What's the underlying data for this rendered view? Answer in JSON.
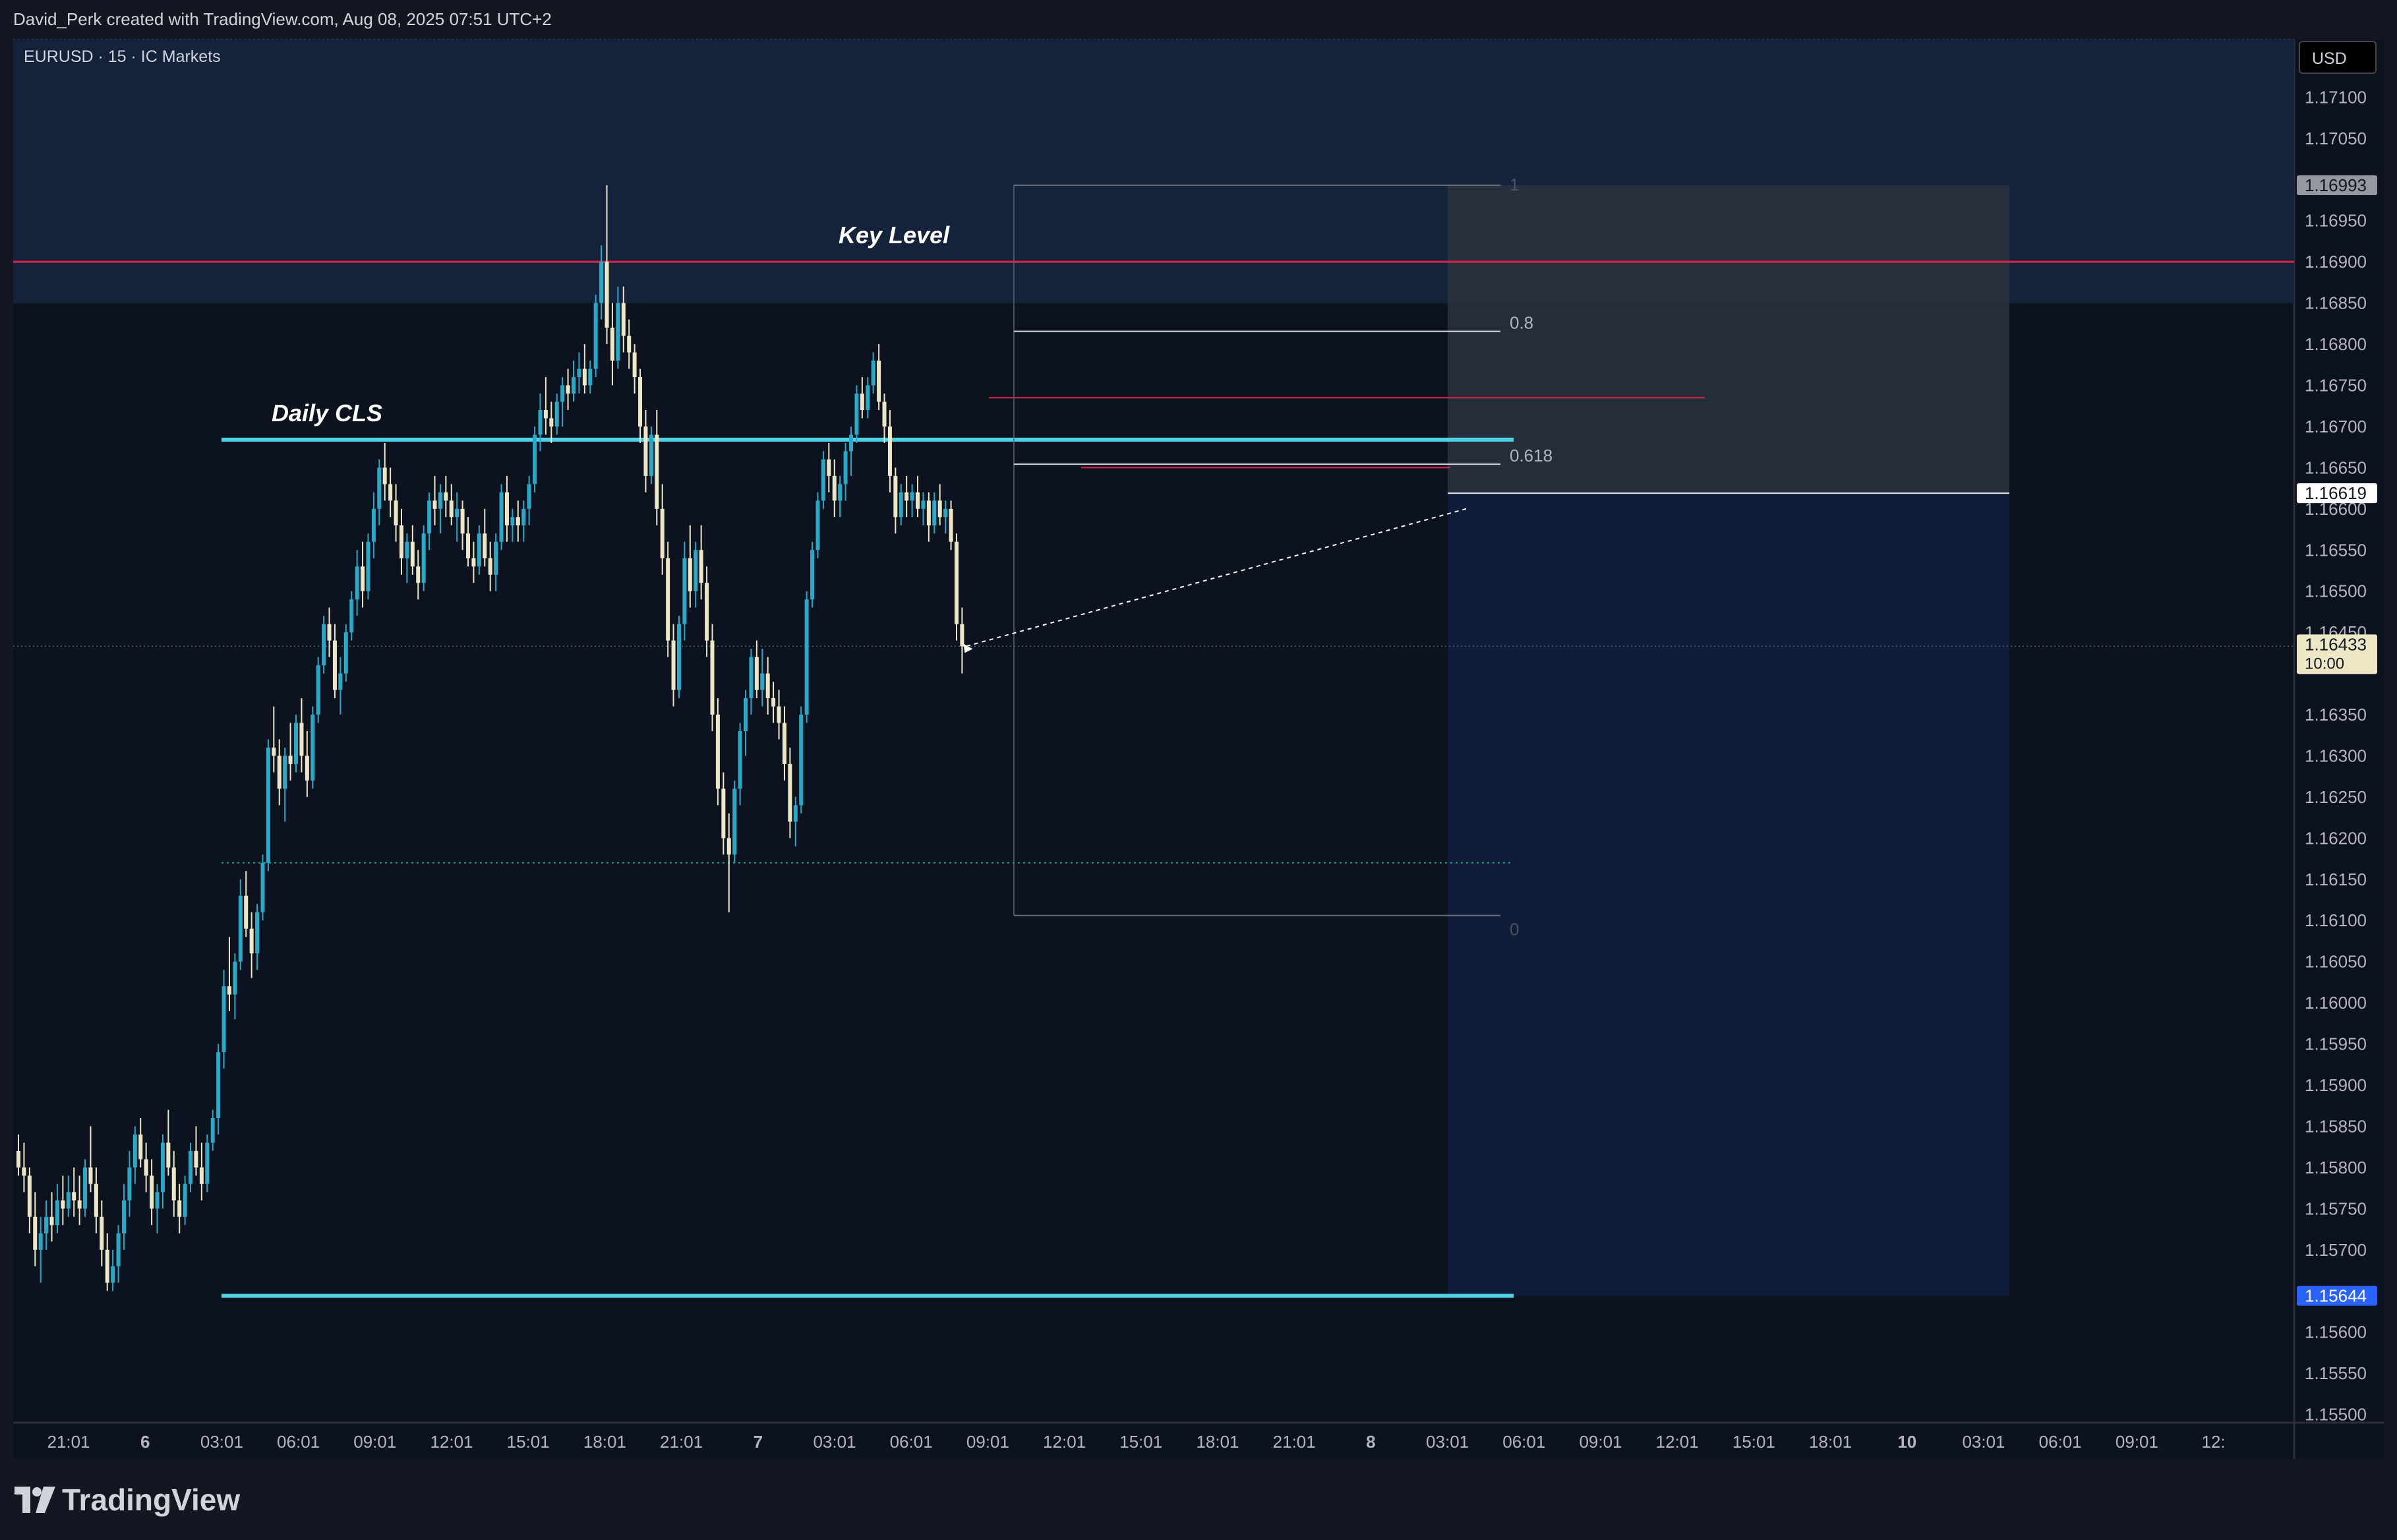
{
  "header": {
    "author_line": "David_Perk created with TradingView.com, Aug 08, 2025 07:51 UTC+2",
    "symbol_line": "EURUSD · 15 · IC Markets",
    "currency": "USD"
  },
  "footer": {
    "brand": "TradingView"
  },
  "colors": {
    "background": "#0c131f",
    "bull_candle": "#29a9c8",
    "bear_candle": "#ede7c6",
    "key_level_line": "#e0254a",
    "daily_cls_line": "#4fd3e8",
    "zone_top": "#15233d",
    "zone_right": "#0f1f3b",
    "zone_grey": "#2b3240",
    "last_price_tag": "#ede7c6",
    "target_tag": "#2962ff"
  },
  "chart_data": {
    "type": "candlestick",
    "symbol": "EURUSD",
    "interval": "15",
    "broker": "IC Markets",
    "y_axis": {
      "ticks": [
        "1.17100",
        "1.17050",
        "1.16950",
        "1.16900",
        "1.16850",
        "1.16800",
        "1.16750",
        "1.16700",
        "1.16650",
        "1.16600",
        "1.16550",
        "1.16500",
        "1.16450",
        "1.16350",
        "1.16300",
        "1.16250",
        "1.16200",
        "1.16150",
        "1.16100",
        "1.16050",
        "1.16000",
        "1.15950",
        "1.15900",
        "1.15850",
        "1.15800",
        "1.15750",
        "1.15700",
        "1.15600",
        "1.15550",
        "1.15500"
      ],
      "range": [
        1.1549,
        1.1717
      ]
    },
    "x_axis": {
      "ticks": [
        {
          "label": "21:01",
          "bold": false
        },
        {
          "label": "6",
          "bold": true
        },
        {
          "label": "03:01",
          "bold": false
        },
        {
          "label": "06:01",
          "bold": false
        },
        {
          "label": "09:01",
          "bold": false
        },
        {
          "label": "12:01",
          "bold": false
        },
        {
          "label": "15:01",
          "bold": false
        },
        {
          "label": "18:01",
          "bold": false
        },
        {
          "label": "21:01",
          "bold": false
        },
        {
          "label": "7",
          "bold": true
        },
        {
          "label": "03:01",
          "bold": false
        },
        {
          "label": "06:01",
          "bold": false
        },
        {
          "label": "09:01",
          "bold": false
        },
        {
          "label": "12:01",
          "bold": false
        },
        {
          "label": "15:01",
          "bold": false
        },
        {
          "label": "18:01",
          "bold": false
        },
        {
          "label": "21:01",
          "bold": false
        },
        {
          "label": "8",
          "bold": true
        },
        {
          "label": "03:01",
          "bold": false
        },
        {
          "label": "06:01",
          "bold": false
        },
        {
          "label": "09:01",
          "bold": false
        },
        {
          "label": "12:01",
          "bold": false
        },
        {
          "label": "15:01",
          "bold": false
        },
        {
          "label": "18:01",
          "bold": false
        },
        {
          "label": "10",
          "bold": true
        },
        {
          "label": "03:01",
          "bold": false
        },
        {
          "label": "06:01",
          "bold": false
        },
        {
          "label": "09:01",
          "bold": false
        },
        {
          "label": "12:",
          "bold": false
        }
      ]
    },
    "price_tags": [
      {
        "value": 1.16993,
        "label": "1.16993",
        "style": "grey"
      },
      {
        "value": 1.16619,
        "label": "1.16619",
        "style": "white"
      },
      {
        "value": 1.16433,
        "label": "1.16433",
        "sub": "10:00",
        "style": "last"
      },
      {
        "value": 1.15644,
        "label": "1.15644",
        "style": "blue"
      }
    ],
    "annotations": [
      {
        "type": "label",
        "text": "Key Level"
      },
      {
        "type": "label",
        "text": "Daily CLS"
      },
      {
        "type": "hline",
        "name": "key-level",
        "price": 1.169
      },
      {
        "type": "hline",
        "name": "daily-cls-upper",
        "price": 1.16684
      },
      {
        "type": "hline",
        "name": "daily-cls-lower",
        "price": 1.15644
      }
    ],
    "fibonacci": {
      "high": 1.16993,
      "low": 1.16106,
      "levels": [
        {
          "ratio": 1,
          "label": "1"
        },
        {
          "ratio": 0.8,
          "label": "0.8"
        },
        {
          "ratio": 0.618,
          "label": "0.618"
        },
        {
          "ratio": 0,
          "label": "0"
        }
      ]
    },
    "position": {
      "entry": 1.16619,
      "stop": 1.16993,
      "target": 1.15644
    },
    "last_price": 1.16433,
    "candles": [
      [
        1.1582,
        1.1584,
        1.1579,
        1.158
      ],
      [
        1.158,
        1.1583,
        1.1577,
        1.1579
      ],
      [
        1.1579,
        1.158,
        1.1572,
        1.1574
      ],
      [
        1.1574,
        1.1577,
        1.1568,
        1.157
      ],
      [
        1.157,
        1.1574,
        1.1566,
        1.1572
      ],
      [
        1.1572,
        1.1576,
        1.157,
        1.1574
      ],
      [
        1.1574,
        1.1577,
        1.1571,
        1.1573
      ],
      [
        1.1573,
        1.1578,
        1.1572,
        1.1576
      ],
      [
        1.1576,
        1.1579,
        1.1573,
        1.1575
      ],
      [
        1.1575,
        1.1579,
        1.1574,
        1.1577
      ],
      [
        1.1577,
        1.158,
        1.1574,
        1.1576
      ],
      [
        1.1576,
        1.1579,
        1.1573,
        1.1575
      ],
      [
        1.1575,
        1.1581,
        1.1574,
        1.158
      ],
      [
        1.158,
        1.1585,
        1.1577,
        1.1578
      ],
      [
        1.1578,
        1.158,
        1.1572,
        1.1574
      ],
      [
        1.1574,
        1.1576,
        1.1568,
        1.157
      ],
      [
        1.157,
        1.1572,
        1.1565,
        1.1566
      ],
      [
        1.1566,
        1.157,
        1.1565,
        1.1568
      ],
      [
        1.1568,
        1.1573,
        1.1566,
        1.1572
      ],
      [
        1.1572,
        1.1578,
        1.157,
        1.1576
      ],
      [
        1.1576,
        1.1582,
        1.1574,
        1.158
      ],
      [
        1.158,
        1.1585,
        1.1578,
        1.1584
      ],
      [
        1.1584,
        1.1586,
        1.158,
        1.1581
      ],
      [
        1.1581,
        1.1583,
        1.1577,
        1.1579
      ],
      [
        1.1579,
        1.1581,
        1.1573,
        1.1575
      ],
      [
        1.1575,
        1.1578,
        1.1572,
        1.1577
      ],
      [
        1.1577,
        1.1584,
        1.1575,
        1.1583
      ],
      [
        1.1583,
        1.1587,
        1.1579,
        1.158
      ],
      [
        1.158,
        1.1582,
        1.1574,
        1.1576
      ],
      [
        1.1576,
        1.1578,
        1.1572,
        1.1574
      ],
      [
        1.1574,
        1.1579,
        1.1573,
        1.1578
      ],
      [
        1.1578,
        1.1583,
        1.1577,
        1.1582
      ],
      [
        1.1582,
        1.1585,
        1.1579,
        1.158
      ],
      [
        1.158,
        1.1583,
        1.1576,
        1.1578
      ],
      [
        1.1578,
        1.1584,
        1.1577,
        1.1583
      ],
      [
        1.1583,
        1.1587,
        1.1582,
        1.1586
      ],
      [
        1.1586,
        1.1595,
        1.1584,
        1.1594
      ],
      [
        1.1594,
        1.1604,
        1.1592,
        1.1602
      ],
      [
        1.1602,
        1.1608,
        1.1599,
        1.1601
      ],
      [
        1.1601,
        1.1606,
        1.1598,
        1.1605
      ],
      [
        1.1605,
        1.1615,
        1.1604,
        1.1613
      ],
      [
        1.1613,
        1.1616,
        1.1608,
        1.1609
      ],
      [
        1.1609,
        1.1611,
        1.1603,
        1.1606
      ],
      [
        1.1606,
        1.1612,
        1.1604,
        1.1611
      ],
      [
        1.1611,
        1.1618,
        1.161,
        1.1617
      ],
      [
        1.1617,
        1.1632,
        1.1616,
        1.1631
      ],
      [
        1.1631,
        1.1636,
        1.1628,
        1.163
      ],
      [
        1.163,
        1.1632,
        1.1624,
        1.1626
      ],
      [
        1.1626,
        1.1631,
        1.1622,
        1.163
      ],
      [
        1.163,
        1.1634,
        1.1627,
        1.1629
      ],
      [
        1.1629,
        1.1635,
        1.1628,
        1.1634
      ],
      [
        1.1634,
        1.1637,
        1.1628,
        1.163
      ],
      [
        1.163,
        1.1633,
        1.1625,
        1.1627
      ],
      [
        1.1627,
        1.1636,
        1.1626,
        1.1635
      ],
      [
        1.1635,
        1.1642,
        1.1634,
        1.1641
      ],
      [
        1.1641,
        1.1647,
        1.164,
        1.1646
      ],
      [
        1.1646,
        1.1648,
        1.1642,
        1.1644
      ],
      [
        1.1644,
        1.1646,
        1.1637,
        1.1638
      ],
      [
        1.1638,
        1.1642,
        1.1635,
        1.164
      ],
      [
        1.164,
        1.1646,
        1.1639,
        1.1645
      ],
      [
        1.1645,
        1.165,
        1.1644,
        1.1649
      ],
      [
        1.1649,
        1.1655,
        1.1647,
        1.1653
      ],
      [
        1.1653,
        1.1656,
        1.1648,
        1.165
      ],
      [
        1.165,
        1.1657,
        1.1649,
        1.1656
      ],
      [
        1.1656,
        1.1662,
        1.1654,
        1.166
      ],
      [
        1.166,
        1.1666,
        1.1658,
        1.1665
      ],
      [
        1.1665,
        1.1668,
        1.1661,
        1.1663
      ],
      [
        1.1663,
        1.1665,
        1.1659,
        1.1661
      ],
      [
        1.1661,
        1.1663,
        1.1656,
        1.1658
      ],
      [
        1.1658,
        1.166,
        1.1652,
        1.1654
      ],
      [
        1.1654,
        1.1657,
        1.1651,
        1.1656
      ],
      [
        1.1656,
        1.1658,
        1.1652,
        1.1653
      ],
      [
        1.1653,
        1.1655,
        1.1649,
        1.1651
      ],
      [
        1.1651,
        1.1658,
        1.165,
        1.1657
      ],
      [
        1.1657,
        1.1662,
        1.1655,
        1.1661
      ],
      [
        1.1661,
        1.1664,
        1.1658,
        1.166
      ],
      [
        1.166,
        1.1663,
        1.1657,
        1.1662
      ],
      [
        1.1662,
        1.1664,
        1.1659,
        1.1661
      ],
      [
        1.1661,
        1.1663,
        1.1658,
        1.1659
      ],
      [
        1.1659,
        1.1662,
        1.1656,
        1.166
      ],
      [
        1.166,
        1.1661,
        1.1655,
        1.1657
      ],
      [
        1.1657,
        1.1659,
        1.1653,
        1.1654
      ],
      [
        1.1654,
        1.1656,
        1.1651,
        1.1653
      ],
      [
        1.1653,
        1.1658,
        1.1652,
        1.1657
      ],
      [
        1.1657,
        1.166,
        1.1653,
        1.1654
      ],
      [
        1.1654,
        1.1656,
        1.165,
        1.1652
      ],
      [
        1.1652,
        1.1657,
        1.165,
        1.1656
      ],
      [
        1.1656,
        1.1663,
        1.1655,
        1.1662
      ],
      [
        1.1662,
        1.1664,
        1.1656,
        1.1658
      ],
      [
        1.1658,
        1.166,
        1.1656,
        1.1659
      ],
      [
        1.1659,
        1.1661,
        1.1656,
        1.1658
      ],
      [
        1.1658,
        1.1661,
        1.1656,
        1.166
      ],
      [
        1.166,
        1.1664,
        1.1658,
        1.1663
      ],
      [
        1.1663,
        1.167,
        1.1662,
        1.1669
      ],
      [
        1.1669,
        1.1674,
        1.1667,
        1.1672
      ],
      [
        1.1672,
        1.1676,
        1.1669,
        1.1671
      ],
      [
        1.1671,
        1.1673,
        1.1668,
        1.167
      ],
      [
        1.167,
        1.1674,
        1.1669,
        1.1673
      ],
      [
        1.1673,
        1.1676,
        1.167,
        1.1675
      ],
      [
        1.1675,
        1.1677,
        1.1672,
        1.1674
      ],
      [
        1.1674,
        1.1678,
        1.1673,
        1.1676
      ],
      [
        1.1676,
        1.1679,
        1.1674,
        1.1677
      ],
      [
        1.1677,
        1.168,
        1.1674,
        1.1675
      ],
      [
        1.1675,
        1.1678,
        1.1674,
        1.1677
      ],
      [
        1.1677,
        1.1686,
        1.1676,
        1.1685
      ],
      [
        1.1685,
        1.1692,
        1.1683,
        1.169
      ],
      [
        1.169,
        1.16993,
        1.168,
        1.1682
      ],
      [
        1.1682,
        1.1685,
        1.1675,
        1.1678
      ],
      [
        1.1678,
        1.1687,
        1.1677,
        1.1685
      ],
      [
        1.1685,
        1.1687,
        1.1679,
        1.1681
      ],
      [
        1.1681,
        1.1683,
        1.1677,
        1.1679
      ],
      [
        1.1679,
        1.168,
        1.1674,
        1.1676
      ],
      [
        1.1676,
        1.1677,
        1.1668,
        1.167
      ],
      [
        1.167,
        1.1672,
        1.1662,
        1.1664
      ],
      [
        1.1664,
        1.167,
        1.1663,
        1.1669
      ],
      [
        1.1669,
        1.1672,
        1.1658,
        1.166
      ],
      [
        1.166,
        1.1663,
        1.1652,
        1.1654
      ],
      [
        1.1654,
        1.1656,
        1.1642,
        1.1644
      ],
      [
        1.1644,
        1.1646,
        1.1636,
        1.1638
      ],
      [
        1.1638,
        1.1647,
        1.1637,
        1.1646
      ],
      [
        1.1646,
        1.1656,
        1.1644,
        1.1654
      ],
      [
        1.1654,
        1.1658,
        1.1648,
        1.165
      ],
      [
        1.165,
        1.1656,
        1.1648,
        1.1655
      ],
      [
        1.1655,
        1.1658,
        1.1649,
        1.1651
      ],
      [
        1.1651,
        1.1653,
        1.1642,
        1.1644
      ],
      [
        1.1644,
        1.1646,
        1.1633,
        1.1635
      ],
      [
        1.1635,
        1.1637,
        1.1624,
        1.1626
      ],
      [
        1.1626,
        1.1628,
        1.1618,
        1.162
      ],
      [
        1.162,
        1.1623,
        1.1611,
        1.1618
      ],
      [
        1.1618,
        1.1627,
        1.1617,
        1.1626
      ],
      [
        1.1626,
        1.1634,
        1.1624,
        1.1633
      ],
      [
        1.1633,
        1.1638,
        1.163,
        1.1637
      ],
      [
        1.1637,
        1.1643,
        1.1635,
        1.1642
      ],
      [
        1.1642,
        1.1644,
        1.1637,
        1.1638
      ],
      [
        1.1638,
        1.1643,
        1.1636,
        1.164
      ],
      [
        1.164,
        1.1642,
        1.1635,
        1.1637
      ],
      [
        1.1637,
        1.1639,
        1.1634,
        1.1636
      ],
      [
        1.1636,
        1.1638,
        1.1632,
        1.1634
      ],
      [
        1.1634,
        1.1636,
        1.1627,
        1.1629
      ],
      [
        1.1629,
        1.1631,
        1.162,
        1.1622
      ],
      [
        1.1622,
        1.1625,
        1.1619,
        1.1624
      ],
      [
        1.1624,
        1.1636,
        1.1623,
        1.1635
      ],
      [
        1.1635,
        1.165,
        1.1634,
        1.1649
      ],
      [
        1.1649,
        1.1656,
        1.1648,
        1.1655
      ],
      [
        1.1655,
        1.1662,
        1.1654,
        1.1661
      ],
      [
        1.1661,
        1.1667,
        1.166,
        1.1666
      ],
      [
        1.1666,
        1.1668,
        1.1662,
        1.1664
      ],
      [
        1.1664,
        1.1666,
        1.1659,
        1.1661
      ],
      [
        1.1661,
        1.1664,
        1.1659,
        1.1663
      ],
      [
        1.1663,
        1.1668,
        1.1661,
        1.1667
      ],
      [
        1.1667,
        1.167,
        1.1664,
        1.1669
      ],
      [
        1.1669,
        1.1675,
        1.1668,
        1.1674
      ],
      [
        1.1674,
        1.1676,
        1.1671,
        1.1672
      ],
      [
        1.1672,
        1.1676,
        1.1671,
        1.1675
      ],
      [
        1.1675,
        1.1679,
        1.1674,
        1.1678
      ],
      [
        1.1678,
        1.168,
        1.1672,
        1.1673
      ],
      [
        1.1673,
        1.1674,
        1.1668,
        1.167
      ],
      [
        1.167,
        1.1672,
        1.1662,
        1.1664
      ],
      [
        1.1664,
        1.1665,
        1.1657,
        1.1659
      ],
      [
        1.1659,
        1.1663,
        1.1658,
        1.1662
      ],
      [
        1.1662,
        1.1664,
        1.1659,
        1.1661
      ],
      [
        1.1661,
        1.1663,
        1.1659,
        1.1662
      ],
      [
        1.1662,
        1.1664,
        1.1659,
        1.166
      ],
      [
        1.166,
        1.1662,
        1.1658,
        1.1661
      ],
      [
        1.1661,
        1.1662,
        1.1656,
        1.1658
      ],
      [
        1.1658,
        1.1662,
        1.1657,
        1.1661
      ],
      [
        1.1661,
        1.1663,
        1.1658,
        1.1659
      ],
      [
        1.1659,
        1.1661,
        1.1657,
        1.166
      ],
      [
        1.166,
        1.1661,
        1.1655,
        1.1656
      ],
      [
        1.1656,
        1.1657,
        1.1644,
        1.1646
      ],
      [
        1.1646,
        1.1648,
        1.164,
        1.16433
      ]
    ]
  }
}
